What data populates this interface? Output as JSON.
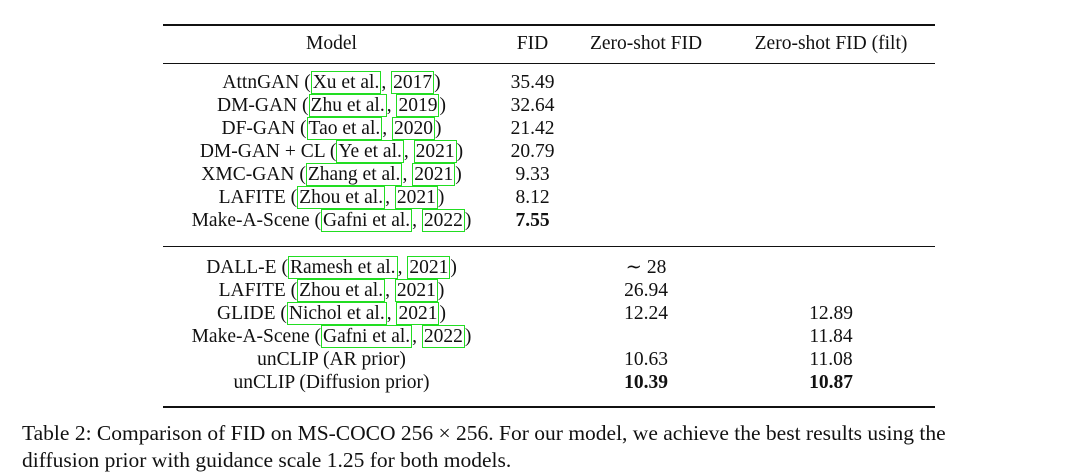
{
  "table": {
    "headers": [
      "Model",
      "FID",
      "Zero-shot FID",
      "Zero-shot FID (filt)"
    ],
    "section1": [
      {
        "name": "AttnGAN",
        "authors": "Xu et al.",
        "year": "2017",
        "fid": "35.49",
        "zs": "",
        "zsf": "",
        "fid_bold": false
      },
      {
        "name": "DM-GAN",
        "authors": "Zhu et al.",
        "year": "2019",
        "fid": "32.64",
        "zs": "",
        "zsf": "",
        "fid_bold": false
      },
      {
        "name": "DF-GAN",
        "authors": "Tao et al.",
        "year": "2020",
        "fid": "21.42",
        "zs": "",
        "zsf": "",
        "fid_bold": false
      },
      {
        "name": "DM-GAN + CL",
        "authors": "Ye et al.",
        "year": "2021",
        "fid": "20.79",
        "zs": "",
        "zsf": "",
        "fid_bold": false
      },
      {
        "name": "XMC-GAN",
        "authors": "Zhang et al.",
        "year": "2021",
        "fid": "9.33",
        "zs": "",
        "zsf": "",
        "fid_bold": false
      },
      {
        "name": "LAFITE",
        "authors": "Zhou et al.",
        "year": "2021",
        "fid": "8.12",
        "zs": "",
        "zsf": "",
        "fid_bold": false
      },
      {
        "name": "Make-A-Scene",
        "authors": "Gafni et al.",
        "year": "2022",
        "fid": "7.55",
        "zs": "",
        "zsf": "",
        "fid_bold": true
      }
    ],
    "section2": [
      {
        "name": "DALL-E",
        "authors": "Ramesh et al.",
        "year": "2021",
        "fid": "",
        "zs": "∼ 28",
        "zsf": "",
        "bold": false
      },
      {
        "name": "LAFITE",
        "authors": "Zhou et al.",
        "year": "2021",
        "fid": "",
        "zs": "26.94",
        "zsf": "",
        "bold": false
      },
      {
        "name": "GLIDE",
        "authors": "Nichol et al.",
        "year": "2021",
        "fid": "",
        "zs": "12.24",
        "zsf": "12.89",
        "bold": false
      },
      {
        "name": "Make-A-Scene",
        "authors": "Gafni et al.",
        "year": "2022",
        "fid": "",
        "zs": "",
        "zsf": "11.84",
        "bold": false
      },
      {
        "name": "unCLIP (AR prior)",
        "authors": "",
        "year": "",
        "fid": "",
        "zs": "10.63",
        "zsf": "11.08",
        "bold": false
      },
      {
        "name": "unCLIP (Diffusion prior)",
        "authors": "",
        "year": "",
        "fid": "",
        "zs": "10.39",
        "zsf": "10.87",
        "bold": true
      }
    ]
  },
  "caption": {
    "line1": "Table 2:  Comparison of FID on MS-COCO 256 × 256. For our model, we achieve the best results using the",
    "line2": "diffusion prior with guidance scale 1.25 for both models."
  },
  "colors": {
    "citation_box": "#22dd22",
    "text": "#111111"
  }
}
